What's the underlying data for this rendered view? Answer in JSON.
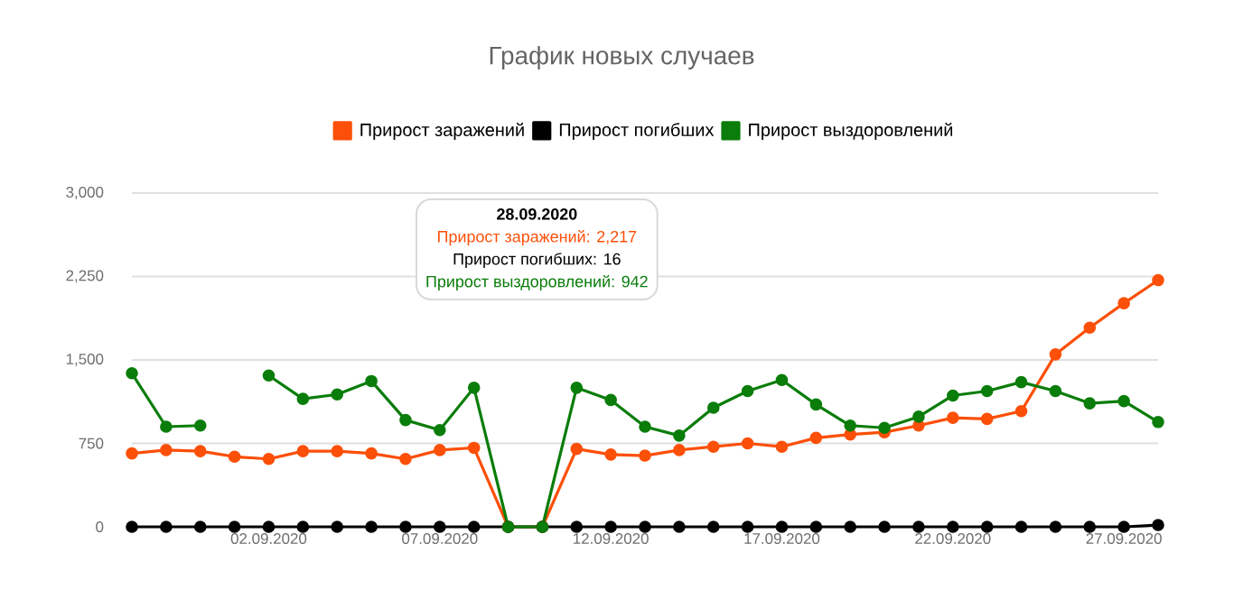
{
  "chart_data": {
    "type": "line",
    "title": "График новых случаев",
    "x": [
      "2020-08-29",
      "2020-08-30",
      "2020-08-31",
      "2020-09-01",
      "2020-09-02",
      "2020-09-03",
      "2020-09-04",
      "2020-09-05",
      "2020-09-06",
      "2020-09-07",
      "2020-09-08",
      "2020-09-09",
      "2020-09-10",
      "2020-09-11",
      "2020-09-12",
      "2020-09-13",
      "2020-09-14",
      "2020-09-15",
      "2020-09-16",
      "2020-09-17",
      "2020-09-18",
      "2020-09-19",
      "2020-09-20",
      "2020-09-21",
      "2020-09-22",
      "2020-09-23",
      "2020-09-24",
      "2020-09-25",
      "2020-09-26",
      "2020-09-27",
      "2020-09-28"
    ],
    "series": [
      {
        "name": "Прирост заражений",
        "color": "#fc4f08",
        "values": [
          660,
          690,
          680,
          630,
          610,
          680,
          680,
          660,
          610,
          690,
          710,
          0,
          0,
          700,
          650,
          640,
          690,
          720,
          750,
          720,
          800,
          830,
          850,
          910,
          980,
          970,
          1040,
          1550,
          1790,
          2010,
          2217
        ]
      },
      {
        "name": "Прирост погибших",
        "color": "#000000",
        "values": [
          0,
          0,
          0,
          0,
          0,
          0,
          0,
          0,
          0,
          0,
          0,
          0,
          0,
          0,
          0,
          0,
          0,
          0,
          0,
          0,
          0,
          0,
          0,
          0,
          0,
          0,
          0,
          0,
          0,
          0,
          16
        ]
      },
      {
        "name": "Прирост выздоровлений",
        "color": "#0a7d0a",
        "values": [
          1380,
          900,
          910,
          null,
          1360,
          1150,
          1190,
          1310,
          960,
          870,
          1250,
          0,
          0,
          1250,
          1140,
          900,
          820,
          1070,
          1220,
          1320,
          1100,
          910,
          890,
          990,
          1180,
          1220,
          1300,
          1220,
          1110,
          1130,
          942
        ]
      }
    ],
    "xlim": [
      "2020-08-29",
      "2020-09-28"
    ],
    "xticks": [
      {
        "value": "2020-09-02",
        "label": "02.09.2020"
      },
      {
        "value": "2020-09-07",
        "label": "07.09.2020"
      },
      {
        "value": "2020-09-12",
        "label": "12.09.2020"
      },
      {
        "value": "2020-09-17",
        "label": "17.09.2020"
      },
      {
        "value": "2020-09-22",
        "label": "22.09.2020"
      },
      {
        "value": "2020-09-27",
        "label": "27.09.2020"
      }
    ],
    "ylim": [
      0,
      3000
    ],
    "yticks": [
      0,
      750,
      {
        "value": 1500,
        "label": "1,500"
      },
      {
        "value": 2250,
        "label": "2,250"
      },
      {
        "value": 3000,
        "label": "3,000"
      }
    ],
    "grid": "y",
    "legend": "top",
    "marker": "circle",
    "line_style": "solid",
    "annotations": [
      "28.09.2020",
      "Прирост заражений: 2,217",
      "Прирост погибших: 16",
      "Прирост выздоровлений: 942"
    ]
  }
}
